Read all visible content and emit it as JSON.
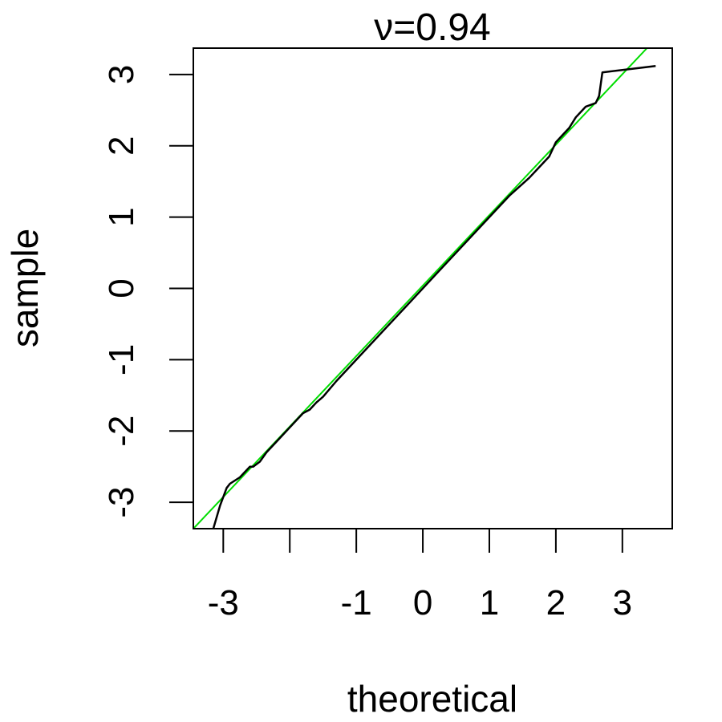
{
  "chart_data": {
    "type": "line",
    "title": "ν=0.94",
    "xlabel": "theoretical",
    "ylabel": "sample",
    "xlim": [
      -3.45,
      3.75
    ],
    "ylim": [
      -3.37,
      3.37
    ],
    "x_ticks": [
      -3,
      -2,
      -1,
      0,
      1,
      2,
      3
    ],
    "x_tick_labels": [
      "-3",
      "",
      "-1",
      "0",
      "1",
      "2",
      "3"
    ],
    "y_ticks": [
      -3,
      -2,
      -1,
      0,
      1,
      2,
      3
    ],
    "y_tick_labels": [
      "-3",
      "-2",
      "-1",
      "0",
      "1",
      "2",
      "3"
    ],
    "grid": false,
    "legend": "none",
    "series": [
      {
        "color": "#000000",
        "kind": "qq-curve",
        "x": [
          -3.15,
          -3.05,
          -2.95,
          -2.9,
          -2.75,
          -2.6,
          -2.55,
          -2.45,
          -2.35,
          -2.25,
          -2.15,
          -2.0,
          -1.9,
          -1.8,
          -1.7,
          -1.6,
          -1.5,
          -1.3,
          -1.0,
          -0.6,
          -0.2,
          0.2,
          0.6,
          1.0,
          1.3,
          1.6,
          1.8,
          1.9,
          2.0,
          2.1,
          2.2,
          2.3,
          2.45,
          2.6,
          2.65,
          2.7,
          3.15,
          3.5
        ],
        "y": [
          -3.37,
          -3.05,
          -2.8,
          -2.74,
          -2.65,
          -2.5,
          -2.5,
          -2.43,
          -2.3,
          -2.2,
          -2.1,
          -1.95,
          -1.85,
          -1.75,
          -1.7,
          -1.6,
          -1.52,
          -1.3,
          -1.0,
          -0.6,
          -0.2,
          0.2,
          0.6,
          1.0,
          1.3,
          1.55,
          1.75,
          1.85,
          2.05,
          2.15,
          2.25,
          2.4,
          2.55,
          2.6,
          2.7,
          3.03,
          3.08,
          3.12
        ]
      },
      {
        "color": "#00dd00",
        "kind": "reference-line",
        "x": [
          -3.45,
          3.37
        ],
        "y": [
          -3.37,
          3.37
        ]
      }
    ]
  }
}
